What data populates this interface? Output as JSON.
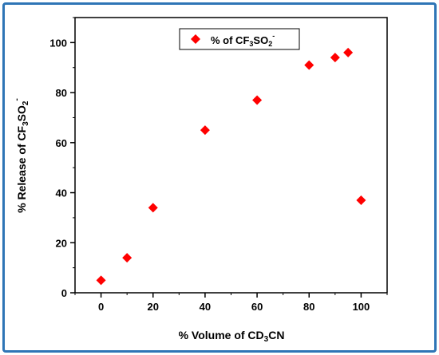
{
  "chart_data": {
    "type": "scatter",
    "xlabel": {
      "prefix": "% Volume of CD",
      "sub": "3",
      "suffix": "CN"
    },
    "ylabel": {
      "prefix": "% Release of CF",
      "sub1": "3",
      "mid": "SO",
      "sub2": "2",
      "sup": "-"
    },
    "xlim": [
      -10,
      110
    ],
    "ylim": [
      0,
      110
    ],
    "xticks": [
      0,
      20,
      40,
      60,
      80,
      100
    ],
    "yticks": [
      0,
      20,
      40,
      60,
      80,
      100
    ],
    "grid": false,
    "legend_position": "top-center",
    "series": [
      {
        "legend": {
          "prefix": "% of CF",
          "sub1": "3",
          "mid": "SO",
          "sub2": "2",
          "sup": "-"
        },
        "color": "#ff0000",
        "marker": "diamond",
        "x": [
          0,
          10,
          20,
          40,
          60,
          80,
          90,
          95,
          100
        ],
        "y": [
          5,
          14,
          34,
          65,
          77,
          91,
          94,
          96,
          37
        ]
      }
    ]
  }
}
